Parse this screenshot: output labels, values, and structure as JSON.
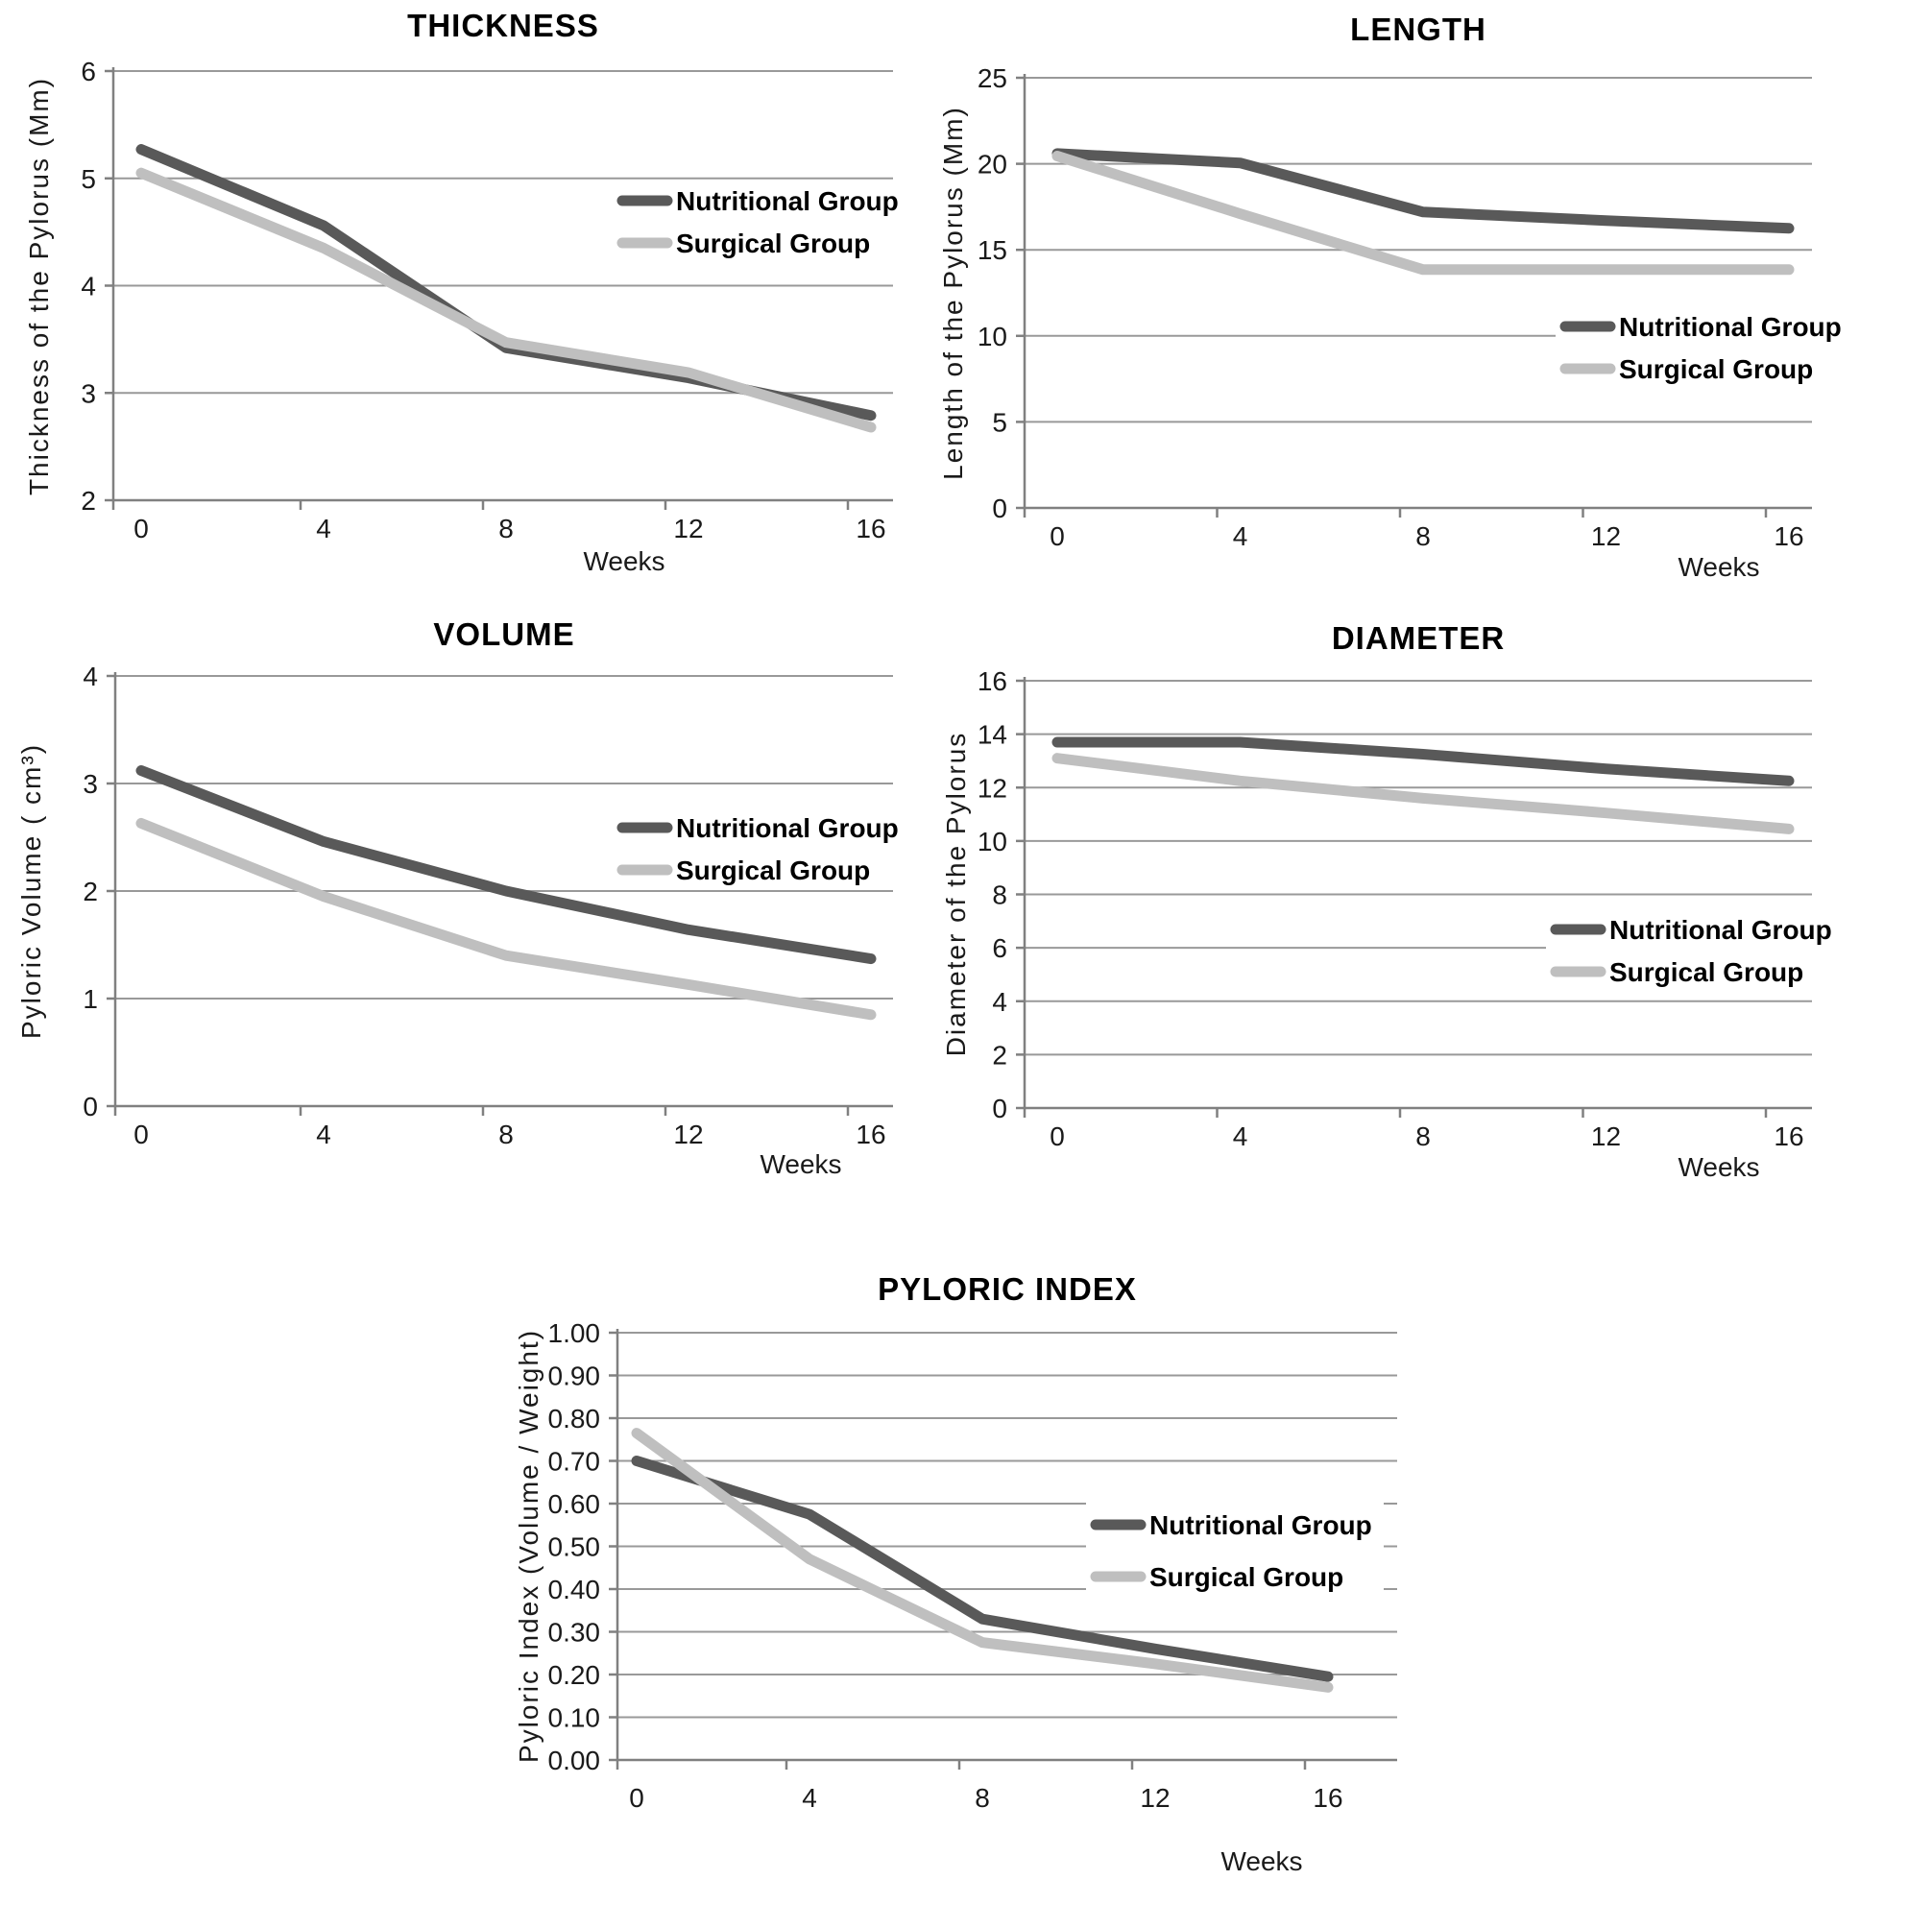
{
  "figure_title": "",
  "colors": {
    "dark_series": "#595959",
    "light_series": "#bfbfbf",
    "gridline": "#999999",
    "axis": "#808080",
    "text": "#1a1a1a",
    "background": "#ffffff"
  },
  "chart_data": [
    {
      "id": "thickness",
      "type": "line",
      "title": "THICKNESS",
      "xlabel": "Weeks",
      "ylabel": "Thickness  of the Pylorus (Mm)",
      "x": [
        0,
        4,
        8,
        12,
        16
      ],
      "xtick_labels": [
        "0",
        "4",
        "8",
        "12",
        "16"
      ],
      "ylim": [
        2,
        6
      ],
      "yticks": [
        2,
        3,
        4,
        5,
        6
      ],
      "ytick_labels": [
        "2",
        "3",
        "4",
        "5",
        "6"
      ],
      "grid": true,
      "legend_position": "inside-right-upper",
      "series": [
        {
          "name": "Nutritional Group",
          "color_key": "dark_series",
          "values": [
            5.27,
            4.56,
            3.42,
            3.14,
            2.79
          ]
        },
        {
          "name": "Surgical Group",
          "color_key": "light_series",
          "values": [
            5.05,
            4.35,
            3.47,
            3.19,
            2.68
          ]
        }
      ]
    },
    {
      "id": "length",
      "type": "line",
      "title": "LENGTH",
      "xlabel": "Weeks",
      "ylabel": "Length of the Pylorus (Mm)",
      "x": [
        0,
        4,
        8,
        12,
        16
      ],
      "xtick_labels": [
        "0",
        "4",
        "8",
        "12",
        "16"
      ],
      "ylim": [
        0,
        25
      ],
      "yticks": [
        0,
        5,
        10,
        15,
        20,
        25
      ],
      "ytick_labels": [
        "0",
        "5",
        "10",
        "15",
        "20",
        "25"
      ],
      "grid": true,
      "legend_position": "inside-right-middle",
      "series": [
        {
          "name": "Nutritional Group",
          "color_key": "dark_series",
          "values": [
            20.6,
            20.05,
            17.2,
            16.7,
            16.25
          ]
        },
        {
          "name": "Surgical Group",
          "color_key": "light_series",
          "values": [
            20.45,
            17.1,
            13.85,
            13.85,
            13.85
          ]
        }
      ]
    },
    {
      "id": "volume",
      "type": "line",
      "title": "VOLUME",
      "xlabel": "Weeks",
      "ylabel": "Pyloric Volume  ( cm³)",
      "x": [
        0,
        4,
        8,
        12,
        16
      ],
      "xtick_labels": [
        "0",
        "4",
        "8",
        "12",
        "16"
      ],
      "ylim": [
        0,
        4
      ],
      "yticks": [
        0,
        1,
        2,
        3,
        4
      ],
      "ytick_labels": [
        "0",
        "1",
        "2",
        "3",
        "4"
      ],
      "grid": true,
      "legend_position": "inside-right-upper",
      "series": [
        {
          "name": "Nutritional Group",
          "color_key": "dark_series",
          "values": [
            3.12,
            2.46,
            2.0,
            1.64,
            1.37
          ]
        },
        {
          "name": "Surgical Group",
          "color_key": "light_series",
          "values": [
            2.63,
            1.95,
            1.4,
            1.13,
            0.85
          ]
        }
      ]
    },
    {
      "id": "diameter",
      "type": "line",
      "title": "DIAMETER",
      "xlabel": "Weeks",
      "ylabel": "Diameter of the Pylorus",
      "x": [
        0,
        4,
        8,
        12,
        16
      ],
      "xtick_labels": [
        "0",
        "4",
        "8",
        "12",
        "16"
      ],
      "ylim": [
        0,
        16
      ],
      "yticks": [
        0,
        2,
        4,
        6,
        8,
        10,
        12,
        14,
        16
      ],
      "ytick_labels": [
        "0",
        "2",
        "4",
        "6",
        "8",
        "10",
        "12",
        "14",
        "16"
      ],
      "grid": true,
      "legend_position": "inside-right-lower",
      "series": [
        {
          "name": "Nutritional Group",
          "color_key": "dark_series",
          "values": [
            13.7,
            13.7,
            13.25,
            12.7,
            12.25
          ]
        },
        {
          "name": "Surgical Group",
          "color_key": "light_series",
          "values": [
            13.1,
            12.25,
            11.6,
            11.05,
            10.45
          ]
        }
      ]
    },
    {
      "id": "pyloric_index",
      "type": "line",
      "title": "PYLORIC  INDEX",
      "xlabel": "Weeks",
      "ylabel": "Pyloric Index   (Volume / Weight)",
      "x": [
        0,
        4,
        8,
        12,
        16
      ],
      "xtick_labels": [
        "0",
        "4",
        "8",
        "12",
        "16"
      ],
      "ylim": [
        0,
        1
      ],
      "yticks": [
        0,
        0.1,
        0.2,
        0.3,
        0.4,
        0.5,
        0.6,
        0.7,
        0.8,
        0.9,
        1.0
      ],
      "ytick_labels": [
        "0.00",
        "0.10",
        "0.20",
        "0.30",
        "0.40",
        "0.50",
        "0.60",
        "0.70",
        "0.80",
        "0.90",
        "1.00"
      ],
      "grid": true,
      "legend_position": "inside-right-middle",
      "series": [
        {
          "name": "Nutritional Group",
          "color_key": "dark_series",
          "values": [
            0.7,
            0.575,
            0.33,
            0.26,
            0.195
          ]
        },
        {
          "name": "Surgical Group",
          "color_key": "light_series",
          "values": [
            0.765,
            0.47,
            0.275,
            0.225,
            0.17
          ]
        }
      ]
    }
  ]
}
